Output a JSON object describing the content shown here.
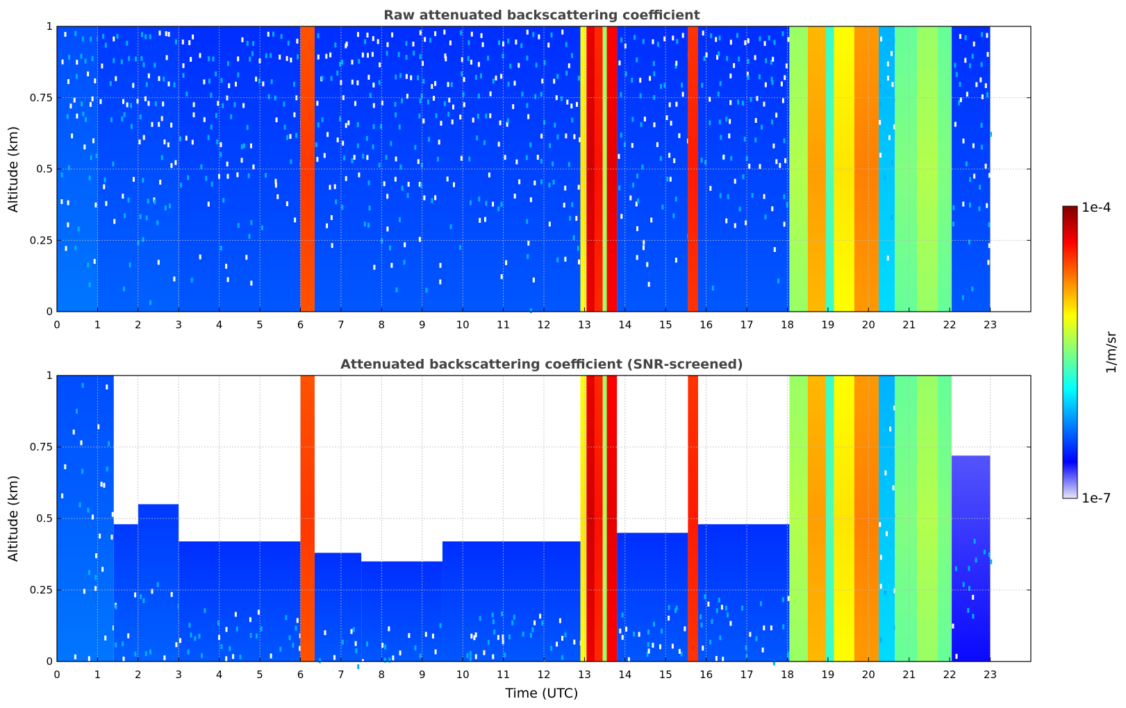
{
  "chart_data": [
    {
      "type": "heatmap",
      "title": "Raw attenuated backscattering coefficient",
      "xlabel": "",
      "ylabel": "Altitude (km)",
      "xlim": [
        0,
        24
      ],
      "ylim": [
        0,
        1
      ],
      "x_ticks": [
        "0",
        "1",
        "2",
        "3",
        "4",
        "5",
        "6",
        "7",
        "8",
        "9",
        "10",
        "11",
        "12",
        "13",
        "14",
        "15",
        "16",
        "17",
        "18",
        "19",
        "20",
        "21",
        "22",
        "23"
      ],
      "y_ticks": [
        "0",
        "0.25",
        "0.5",
        "0.75",
        "1"
      ],
      "grid": true,
      "data_end_hour": 23,
      "columns": [
        {
          "start": 0.0,
          "end": 1.0,
          "level": 0.2,
          "clear_above_km": 1.0
        },
        {
          "start": 1.0,
          "end": 3.0,
          "level": 0.18,
          "clear_above_km": 1.0
        },
        {
          "start": 3.0,
          "end": 6.0,
          "level": 0.17,
          "clear_above_km": 1.0
        },
        {
          "start": 6.0,
          "end": 6.35,
          "level": 0.82,
          "clear_above_km": 1.0
        },
        {
          "start": 6.35,
          "end": 12.9,
          "level": 0.17,
          "clear_above_km": 1.0
        },
        {
          "start": 12.9,
          "end": 13.05,
          "level": 0.65,
          "clear_above_km": 1.0
        },
        {
          "start": 13.05,
          "end": 13.25,
          "level": 0.92,
          "clear_above_km": 1.0
        },
        {
          "start": 13.25,
          "end": 13.45,
          "level": 0.86,
          "clear_above_km": 1.0
        },
        {
          "start": 13.45,
          "end": 13.55,
          "level": 0.55,
          "clear_above_km": 1.0
        },
        {
          "start": 13.55,
          "end": 13.8,
          "level": 0.9,
          "clear_above_km": 1.0
        },
        {
          "start": 13.8,
          "end": 15.55,
          "level": 0.17,
          "clear_above_km": 1.0
        },
        {
          "start": 15.55,
          "end": 15.8,
          "level": 0.85,
          "clear_above_km": 1.0
        },
        {
          "start": 15.8,
          "end": 18.05,
          "level": 0.17,
          "clear_above_km": 1.0
        },
        {
          "start": 18.05,
          "end": 18.5,
          "level": 0.55,
          "clear_above_km": 1.0
        },
        {
          "start": 18.5,
          "end": 18.95,
          "level": 0.72,
          "clear_above_km": 1.0
        },
        {
          "start": 18.95,
          "end": 19.15,
          "level": 0.45,
          "clear_above_km": 1.0
        },
        {
          "start": 19.15,
          "end": 19.65,
          "level": 0.65,
          "clear_above_km": 1.0
        },
        {
          "start": 19.65,
          "end": 20.25,
          "level": 0.75,
          "clear_above_km": 1.0
        },
        {
          "start": 20.25,
          "end": 20.65,
          "level": 0.3,
          "clear_above_km": 1.0
        },
        {
          "start": 20.65,
          "end": 21.2,
          "level": 0.5,
          "clear_above_km": 1.0
        },
        {
          "start": 21.2,
          "end": 21.7,
          "level": 0.55,
          "clear_above_km": 1.0
        },
        {
          "start": 21.7,
          "end": 22.05,
          "level": 0.5,
          "clear_above_km": 1.0
        },
        {
          "start": 22.05,
          "end": 23.0,
          "level": 0.17,
          "clear_above_km": 1.0
        }
      ]
    },
    {
      "type": "heatmap",
      "title": "Attenuated backscattering coefficient (SNR-screened)",
      "xlabel": "Time (UTC)",
      "ylabel": "Altitude (km)",
      "xlim": [
        0,
        24
      ],
      "ylim": [
        0,
        1
      ],
      "x_ticks": [
        "0",
        "1",
        "2",
        "3",
        "4",
        "5",
        "6",
        "7",
        "8",
        "9",
        "10",
        "11",
        "12",
        "13",
        "14",
        "15",
        "16",
        "17",
        "18",
        "19",
        "20",
        "21",
        "22",
        "23"
      ],
      "y_ticks": [
        "0",
        "0.25",
        "0.5",
        "0.75",
        "1"
      ],
      "grid": true,
      "data_end_hour": 23,
      "columns": [
        {
          "start": 0.0,
          "end": 1.4,
          "level": 0.2,
          "clear_above_km": 1.0
        },
        {
          "start": 1.4,
          "end": 2.0,
          "level": 0.18,
          "clear_above_km": 0.48
        },
        {
          "start": 2.0,
          "end": 3.0,
          "level": 0.18,
          "clear_above_km": 0.55
        },
        {
          "start": 3.0,
          "end": 6.0,
          "level": 0.17,
          "clear_above_km": 0.42
        },
        {
          "start": 6.0,
          "end": 6.35,
          "level": 0.82,
          "clear_above_km": 1.0
        },
        {
          "start": 6.35,
          "end": 7.5,
          "level": 0.17,
          "clear_above_km": 0.38
        },
        {
          "start": 7.5,
          "end": 9.5,
          "level": 0.17,
          "clear_above_km": 0.35
        },
        {
          "start": 9.5,
          "end": 12.9,
          "level": 0.17,
          "clear_above_km": 0.42
        },
        {
          "start": 12.9,
          "end": 13.05,
          "level": 0.65,
          "clear_above_km": 1.0
        },
        {
          "start": 13.05,
          "end": 13.25,
          "level": 0.92,
          "clear_above_km": 1.0
        },
        {
          "start": 13.25,
          "end": 13.45,
          "level": 0.86,
          "clear_above_km": 1.0
        },
        {
          "start": 13.45,
          "end": 13.55,
          "level": 0.55,
          "clear_above_km": 1.0
        },
        {
          "start": 13.55,
          "end": 13.8,
          "level": 0.9,
          "clear_above_km": 1.0
        },
        {
          "start": 13.8,
          "end": 15.55,
          "level": 0.17,
          "clear_above_km": 0.45
        },
        {
          "start": 15.55,
          "end": 15.8,
          "level": 0.85,
          "clear_above_km": 1.0
        },
        {
          "start": 15.8,
          "end": 18.05,
          "level": 0.17,
          "clear_above_km": 0.48
        },
        {
          "start": 18.05,
          "end": 18.5,
          "level": 0.55,
          "clear_above_km": 1.0
        },
        {
          "start": 18.5,
          "end": 18.95,
          "level": 0.72,
          "clear_above_km": 1.0
        },
        {
          "start": 18.95,
          "end": 19.15,
          "level": 0.45,
          "clear_above_km": 1.0
        },
        {
          "start": 19.15,
          "end": 19.65,
          "level": 0.65,
          "clear_above_km": 1.0
        },
        {
          "start": 19.65,
          "end": 20.25,
          "level": 0.75,
          "clear_above_km": 1.0
        },
        {
          "start": 20.25,
          "end": 20.65,
          "level": 0.3,
          "clear_above_km": 1.0
        },
        {
          "start": 20.65,
          "end": 21.2,
          "level": 0.5,
          "clear_above_km": 1.0
        },
        {
          "start": 21.2,
          "end": 21.7,
          "level": 0.55,
          "clear_above_km": 1.0
        },
        {
          "start": 21.7,
          "end": 22.05,
          "level": 0.5,
          "clear_above_km": 1.0
        },
        {
          "start": 22.05,
          "end": 23.0,
          "level": 0.08,
          "clear_above_km": 0.72
        }
      ]
    }
  ],
  "colorbar": {
    "label": "1/m/sr",
    "min_label": "1e-7",
    "max_label": "1e-4",
    "scale": "log",
    "colormap": "jet",
    "colors": [
      "#e8e8f8",
      "#0000ff",
      "#0080ff",
      "#00ffff",
      "#80ff80",
      "#ffff00",
      "#ff8000",
      "#ff0000",
      "#800000"
    ]
  }
}
